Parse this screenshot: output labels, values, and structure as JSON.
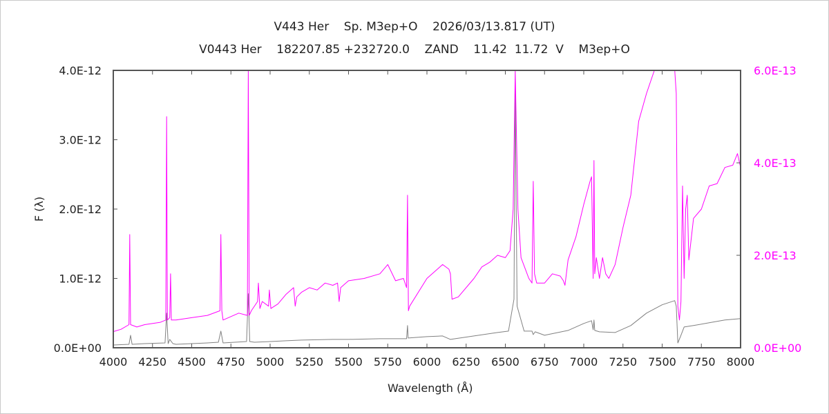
{
  "header": {
    "line1": "V443 Her    Sp. M3ep+O    2026/03/13.817 (UT)",
    "line2": "V0443 Her    182207.85 +232720.0    ZAND    11.42  11.72  V    M3ep+O"
  },
  "chart_data": {
    "type": "line",
    "xlabel": "Wavelength (Å)",
    "ylabel": "F (λ)",
    "xlim": [
      4000,
      8000
    ],
    "ylim_left": [
      0,
      4e-12
    ],
    "ylim_right": [
      0,
      6e-13
    ],
    "x_ticks": [
      "4000",
      "4250",
      "4500",
      "4750",
      "5000",
      "5250",
      "5500",
      "5750",
      "6000",
      "6250",
      "6500",
      "6750",
      "7000",
      "7250",
      "7500",
      "7750",
      "8000"
    ],
    "y_ticks_left": [
      "0.0E+00",
      "1.0E-12",
      "2.0E-12",
      "3.0E-12",
      "4.0E-12"
    ],
    "y_ticks_right": [
      "0.0E+00",
      "2.0E-13",
      "4.0E-13",
      "6.0E-13"
    ],
    "colors": {
      "left_series": "#808080",
      "right_series": "#ff00ff",
      "right_axis": "#ff00ff"
    },
    "series": [
      {
        "axis": "left",
        "x": [
          4000,
          4100,
          4110,
          4120,
          4200,
          4330,
          4340,
          4350,
          4360,
          4380,
          4400,
          4600,
          4670,
          4686,
          4700,
          4850,
          4861,
          4870,
          4900,
          5000,
          5100,
          5200,
          5400,
          5500,
          5700,
          5870,
          5876,
          5880,
          6000,
          6100,
          6150,
          6300,
          6450,
          6520,
          6555,
          6563,
          6575,
          6620,
          6670,
          6678,
          6690,
          6750,
          6900,
          7000,
          7050,
          7060,
          7065,
          7070,
          7100,
          7200,
          7300,
          7400,
          7500,
          7580,
          7590,
          7600,
          7620,
          7640,
          7700,
          7800,
          7900,
          8000
        ],
        "y": [
          4e-14,
          5e-14,
          1.8e-13,
          5e-14,
          6e-14,
          7e-14,
          5e-13,
          6e-14,
          1.2e-13,
          6e-14,
          5e-14,
          7e-14,
          8e-14,
          2.4e-13,
          7e-14,
          9e-14,
          7.8e-13,
          9e-14,
          8e-14,
          9e-14,
          1e-13,
          1.1e-13,
          1.2e-13,
          1.2e-13,
          1.3e-13,
          1.3e-13,
          3.2e-13,
          1.4e-13,
          1.6e-13,
          1.7e-13,
          1.2e-13,
          1.7e-13,
          2.2e-13,
          2.4e-13,
          7e-13,
          3.75e-12,
          6e-13,
          2.4e-13,
          2.4e-13,
          1.9e-13,
          2.3e-13,
          1.8e-13,
          2.5e-13,
          3.5e-13,
          3.9e-13,
          2.6e-13,
          4e-13,
          2.5e-13,
          2.3e-13,
          2.2e-13,
          3.2e-13,
          5e-13,
          6.2e-13,
          6.8e-13,
          6e-13,
          7e-14,
          1.8e-13,
          3e-13,
          3.2e-13,
          3.6e-13,
          4e-13,
          4.2e-13
        ]
      },
      {
        "axis": "right",
        "x": [
          4000,
          4050,
          4100,
          4105,
          4110,
          4150,
          4200,
          4300,
          4335,
          4340,
          4345,
          4360,
          4365,
          4370,
          4400,
          4500,
          4600,
          4680,
          4686,
          4692,
          4700,
          4800,
          4855,
          4861,
          4867,
          4880,
          4920,
          4925,
          4935,
          4950,
          4990,
          4995,
          5005,
          5050,
          5100,
          5150,
          5160,
          5170,
          5200,
          5250,
          5300,
          5350,
          5400,
          5430,
          5440,
          5450,
          5500,
          5600,
          5700,
          5750,
          5800,
          5850,
          5870,
          5876,
          5882,
          5890,
          6000,
          6100,
          6140,
          6150,
          6160,
          6200,
          6300,
          6350,
          6400,
          6450,
          6500,
          6530,
          6550,
          6563,
          6580,
          6600,
          6650,
          6670,
          6678,
          6686,
          6700,
          6750,
          6800,
          6850,
          6870,
          6880,
          6900,
          6950,
          7000,
          7040,
          7050,
          7060,
          7065,
          7070,
          7080,
          7100,
          7120,
          7140,
          7160,
          7200,
          7250,
          7300,
          7350,
          7400,
          7450,
          7460,
          7580,
          7590,
          7600,
          7610,
          7620,
          7630,
          7640,
          7650,
          7660,
          7670,
          7700,
          7750,
          7800,
          7850,
          7900,
          7950,
          7980,
          8000
        ],
        "y": [
          3.5e-14,
          4e-14,
          5e-14,
          2.45e-13,
          5e-14,
          4.5e-14,
          5e-14,
          5.5e-14,
          6e-14,
          5e-13,
          6e-14,
          6.5e-14,
          1.6e-13,
          6e-14,
          6e-14,
          6.5e-14,
          7e-14,
          8e-14,
          2.45e-13,
          8e-14,
          6e-14,
          7.5e-14,
          7e-14,
          6e-13,
          7e-14,
          8e-14,
          1e-13,
          1.4e-13,
          8.5e-14,
          1e-13,
          9e-14,
          1.25e-13,
          8.5e-14,
          9.5e-14,
          1.15e-13,
          1.3e-13,
          9e-14,
          1.1e-13,
          1.2e-13,
          1.3e-13,
          1.25e-13,
          1.4e-13,
          1.35e-13,
          1.4e-13,
          1e-13,
          1.3e-13,
          1.45e-13,
          1.5e-13,
          1.6e-13,
          1.8e-13,
          1.45e-13,
          1.5e-13,
          1.3e-13,
          3.3e-13,
          8e-14,
          9e-14,
          1.5e-13,
          1.8e-13,
          1.7e-13,
          1.6e-13,
          1.05e-13,
          1.1e-13,
          1.5e-13,
          1.75e-13,
          1.85e-13,
          2e-13,
          1.95e-13,
          2.1e-13,
          3e-13,
          6e-13,
          3e-13,
          1.95e-13,
          1.5e-13,
          1.4e-13,
          3.6e-13,
          1.6e-13,
          1.4e-13,
          1.4e-13,
          1.6e-13,
          1.55e-13,
          1.45e-13,
          1.35e-13,
          1.9e-13,
          2.4e-13,
          3.1e-13,
          3.6e-13,
          3.7e-13,
          1.5e-13,
          4.05e-13,
          1.6e-13,
          1.95e-13,
          1.5e-13,
          1.95e-13,
          1.6e-13,
          1.5e-13,
          1.8e-13,
          2.6e-13,
          3.3e-13,
          4.9e-13,
          5.5e-13,
          6e-13,
          6e-13,
          6e-13,
          5.5e-13,
          9e-14,
          6e-14,
          1e-13,
          3.5e-13,
          1.5e-13,
          3e-13,
          3.3e-13,
          1.9e-13,
          2.8e-13,
          3e-13,
          3.5e-13,
          3.55e-13,
          3.9e-13,
          3.95e-13,
          4.2e-13,
          3.9e-13
        ]
      }
    ]
  }
}
